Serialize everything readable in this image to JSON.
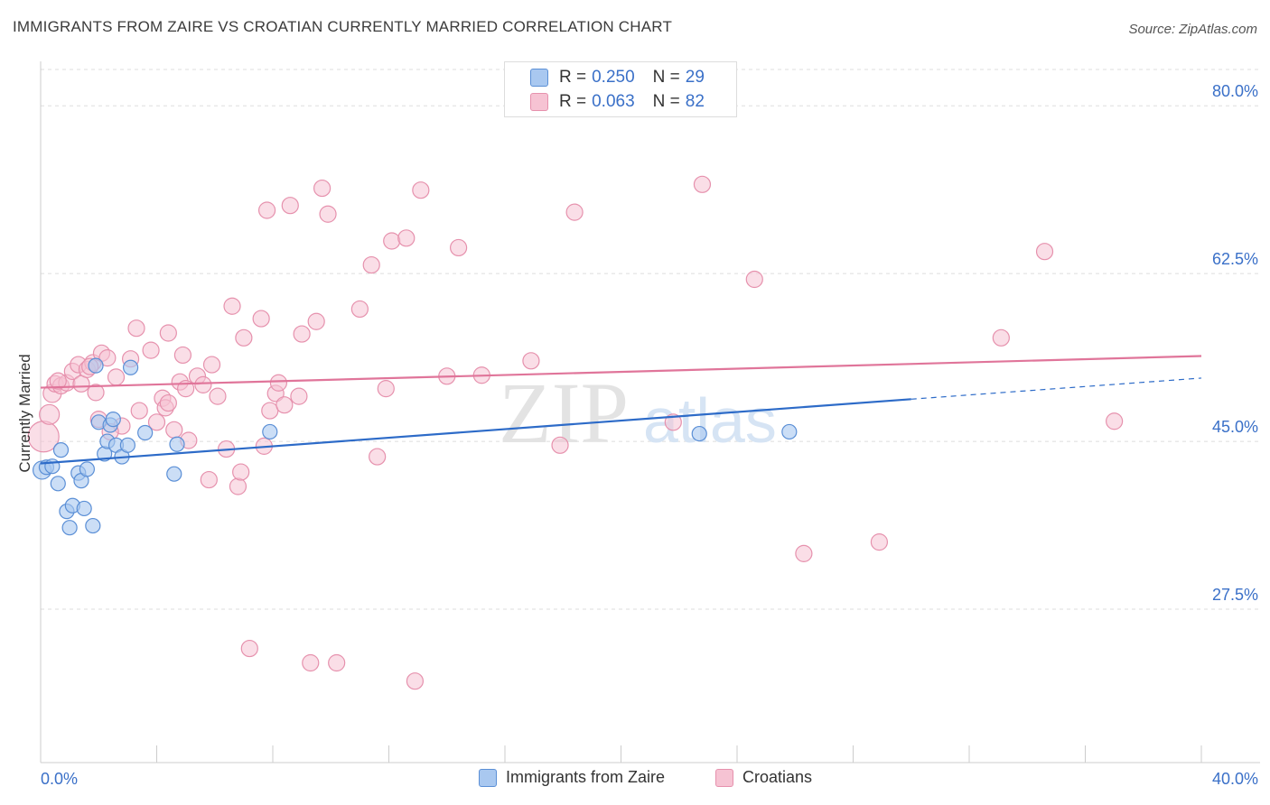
{
  "title": "IMMIGRANTS FROM ZAIRE VS CROATIAN CURRENTLY MARRIED CORRELATION CHART",
  "source": "Source: ZipAtlas.com",
  "watermark": {
    "zip": "ZIP",
    "atlas": "atlas"
  },
  "legend_top": {
    "rows": [
      {
        "series": "Immigrants from Zaire",
        "r_label": "R =",
        "r_value": "0.250",
        "n_label": "N =",
        "n_value": "29"
      },
      {
        "series": "Croatians",
        "r_label": "R =",
        "r_value": "0.063",
        "n_label": "N =",
        "n_value": "82"
      }
    ]
  },
  "legend_bottom": {
    "items": [
      {
        "label": "Immigrants from Zaire"
      },
      {
        "label": "Croatians"
      }
    ]
  },
  "colors": {
    "blue_fill": "#a9c8f0",
    "blue_stroke": "#5b8fd6",
    "blue_line": "#2d6bc8",
    "pink_fill": "#f6c3d3",
    "pink_stroke": "#e691ad",
    "pink_line": "#e0759a",
    "axis_label": "#3a70c8",
    "grid": "#dddddd"
  },
  "chart_data": {
    "type": "scatter",
    "title": "IMMIGRANTS FROM ZAIRE VS CROATIAN CURRENTLY MARRIED CORRELATION CHART",
    "xlabel": "",
    "ylabel": "Currently Married",
    "xlim": [
      0,
      40
    ],
    "ylim": [
      11.5,
      83.5
    ],
    "x_tick_labels": [
      "0.0%",
      "40.0%"
    ],
    "y_ticks": [
      27.5,
      45.0,
      62.5,
      80.0
    ],
    "y_tick_labels": [
      "27.5%",
      "45.0%",
      "62.5%",
      "80.0%"
    ],
    "grid": true,
    "legend_position": "top-center",
    "series": [
      {
        "name": "Immigrants from Zaire",
        "color": "#5b8fd6",
        "trend": {
          "x0": 0,
          "y0": 42.7,
          "x1": 30,
          "y1": 49.4,
          "dashed_to_x": 40,
          "dashed_to_y": 51.6
        },
        "points": [
          {
            "x": 0.05,
            "y": 42.0,
            "size": 10
          },
          {
            "x": 0.2,
            "y": 42.3,
            "size": 8
          },
          {
            "x": 0.4,
            "y": 42.4,
            "size": 8
          },
          {
            "x": 0.7,
            "y": 44.1,
            "size": 8
          },
          {
            "x": 0.6,
            "y": 40.6,
            "size": 8
          },
          {
            "x": 0.9,
            "y": 37.7,
            "size": 8
          },
          {
            "x": 1.0,
            "y": 36.0,
            "size": 8
          },
          {
            "x": 1.1,
            "y": 38.3,
            "size": 8
          },
          {
            "x": 1.3,
            "y": 41.7,
            "size": 8
          },
          {
            "x": 1.4,
            "y": 40.9,
            "size": 8
          },
          {
            "x": 1.5,
            "y": 38.0,
            "size": 8
          },
          {
            "x": 1.6,
            "y": 42.1,
            "size": 8
          },
          {
            "x": 1.8,
            "y": 36.2,
            "size": 8
          },
          {
            "x": 1.9,
            "y": 52.9,
            "size": 8
          },
          {
            "x": 2.0,
            "y": 47.0,
            "size": 8
          },
          {
            "x": 2.2,
            "y": 43.7,
            "size": 8
          },
          {
            "x": 2.3,
            "y": 45.0,
            "size": 8
          },
          {
            "x": 2.4,
            "y": 46.7,
            "size": 8
          },
          {
            "x": 2.5,
            "y": 47.3,
            "size": 8
          },
          {
            "x": 2.6,
            "y": 44.6,
            "size": 8
          },
          {
            "x": 2.8,
            "y": 43.4,
            "size": 8
          },
          {
            "x": 3.0,
            "y": 44.6,
            "size": 8
          },
          {
            "x": 3.1,
            "y": 52.7,
            "size": 8
          },
          {
            "x": 3.6,
            "y": 45.9,
            "size": 8
          },
          {
            "x": 4.6,
            "y": 41.6,
            "size": 8
          },
          {
            "x": 4.7,
            "y": 44.7,
            "size": 8
          },
          {
            "x": 7.9,
            "y": 46.0,
            "size": 8
          },
          {
            "x": 22.7,
            "y": 45.8,
            "size": 8
          },
          {
            "x": 25.8,
            "y": 46.0,
            "size": 8
          }
        ]
      },
      {
        "name": "Croatians",
        "color": "#e691ad",
        "trend": {
          "x0": 0,
          "y0": 50.6,
          "x1": 40,
          "y1": 53.9
        },
        "points": [
          {
            "x": 0.1,
            "y": 45.5,
            "size": 16
          },
          {
            "x": 0.3,
            "y": 47.8,
            "size": 10
          },
          {
            "x": 0.4,
            "y": 50.0,
            "size": 9
          },
          {
            "x": 0.5,
            "y": 51.0,
            "size": 8
          },
          {
            "x": 0.7,
            "y": 50.8,
            "size": 8
          },
          {
            "x": 0.9,
            "y": 51.1,
            "size": 8
          },
          {
            "x": 1.1,
            "y": 52.3,
            "size": 8
          },
          {
            "x": 1.3,
            "y": 53.0,
            "size": 8
          },
          {
            "x": 1.4,
            "y": 51.0,
            "size": 8
          },
          {
            "x": 1.6,
            "y": 52.5,
            "size": 8
          },
          {
            "x": 1.8,
            "y": 53.2,
            "size": 8
          },
          {
            "x": 1.9,
            "y": 50.1,
            "size": 8
          },
          {
            "x": 2.1,
            "y": 54.2,
            "size": 8
          },
          {
            "x": 2.3,
            "y": 53.7,
            "size": 8
          },
          {
            "x": 2.6,
            "y": 51.7,
            "size": 8
          },
          {
            "x": 2.8,
            "y": 46.6,
            "size": 8
          },
          {
            "x": 3.1,
            "y": 53.6,
            "size": 8
          },
          {
            "x": 3.3,
            "y": 56.8,
            "size": 8
          },
          {
            "x": 3.4,
            "y": 48.2,
            "size": 8
          },
          {
            "x": 3.8,
            "y": 54.5,
            "size": 8
          },
          {
            "x": 4.0,
            "y": 47.0,
            "size": 8
          },
          {
            "x": 4.2,
            "y": 49.5,
            "size": 8
          },
          {
            "x": 4.3,
            "y": 48.5,
            "size": 8
          },
          {
            "x": 4.4,
            "y": 56.3,
            "size": 8
          },
          {
            "x": 4.6,
            "y": 46.2,
            "size": 8
          },
          {
            "x": 4.8,
            "y": 51.2,
            "size": 8
          },
          {
            "x": 4.9,
            "y": 54.0,
            "size": 8
          },
          {
            "x": 5.1,
            "y": 45.1,
            "size": 8
          },
          {
            "x": 5.4,
            "y": 51.8,
            "size": 8
          },
          {
            "x": 5.6,
            "y": 50.9,
            "size": 8
          },
          {
            "x": 5.8,
            "y": 41.0,
            "size": 8
          },
          {
            "x": 5.9,
            "y": 53.0,
            "size": 8
          },
          {
            "x": 6.1,
            "y": 49.7,
            "size": 8
          },
          {
            "x": 6.4,
            "y": 44.2,
            "size": 8
          },
          {
            "x": 6.6,
            "y": 59.1,
            "size": 8
          },
          {
            "x": 6.8,
            "y": 40.3,
            "size": 8
          },
          {
            "x": 6.9,
            "y": 41.8,
            "size": 8
          },
          {
            "x": 7.0,
            "y": 55.8,
            "size": 8
          },
          {
            "x": 7.2,
            "y": 23.4,
            "size": 8
          },
          {
            "x": 7.6,
            "y": 57.8,
            "size": 8
          },
          {
            "x": 7.7,
            "y": 44.5,
            "size": 8
          },
          {
            "x": 7.8,
            "y": 69.1,
            "size": 8
          },
          {
            "x": 7.9,
            "y": 48.2,
            "size": 8
          },
          {
            "x": 8.1,
            "y": 50.0,
            "size": 8
          },
          {
            "x": 8.2,
            "y": 51.1,
            "size": 8
          },
          {
            "x": 8.4,
            "y": 48.8,
            "size": 8
          },
          {
            "x": 8.6,
            "y": 69.6,
            "size": 8
          },
          {
            "x": 8.9,
            "y": 49.7,
            "size": 8
          },
          {
            "x": 9.0,
            "y": 56.2,
            "size": 8
          },
          {
            "x": 9.3,
            "y": 21.9,
            "size": 8
          },
          {
            "x": 9.5,
            "y": 57.5,
            "size": 8
          },
          {
            "x": 9.7,
            "y": 71.4,
            "size": 8
          },
          {
            "x": 9.9,
            "y": 68.7,
            "size": 8
          },
          {
            "x": 10.2,
            "y": 21.9,
            "size": 8
          },
          {
            "x": 11.0,
            "y": 58.8,
            "size": 8
          },
          {
            "x": 11.4,
            "y": 63.4,
            "size": 8
          },
          {
            "x": 11.6,
            "y": 43.4,
            "size": 8
          },
          {
            "x": 11.9,
            "y": 50.5,
            "size": 8
          },
          {
            "x": 12.1,
            "y": 65.9,
            "size": 8
          },
          {
            "x": 12.6,
            "y": 66.2,
            "size": 8
          },
          {
            "x": 12.9,
            "y": 20.0,
            "size": 8
          },
          {
            "x": 13.1,
            "y": 71.2,
            "size": 8
          },
          {
            "x": 14.0,
            "y": 51.8,
            "size": 8
          },
          {
            "x": 14.4,
            "y": 65.2,
            "size": 8
          },
          {
            "x": 15.2,
            "y": 51.9,
            "size": 8
          },
          {
            "x": 16.9,
            "y": 53.4,
            "size": 8
          },
          {
            "x": 17.9,
            "y": 44.6,
            "size": 8
          },
          {
            "x": 18.4,
            "y": 68.9,
            "size": 8
          },
          {
            "x": 21.8,
            "y": 47.0,
            "size": 8
          },
          {
            "x": 22.8,
            "y": 71.8,
            "size": 8
          },
          {
            "x": 24.6,
            "y": 61.9,
            "size": 8
          },
          {
            "x": 26.3,
            "y": 33.3,
            "size": 8
          },
          {
            "x": 28.9,
            "y": 34.5,
            "size": 8
          },
          {
            "x": 33.1,
            "y": 55.8,
            "size": 8
          },
          {
            "x": 34.6,
            "y": 64.8,
            "size": 8
          },
          {
            "x": 37.0,
            "y": 47.1,
            "size": 8
          },
          {
            "x": 1.7,
            "y": 52.8,
            "size": 8
          },
          {
            "x": 2.0,
            "y": 47.3,
            "size": 8
          },
          {
            "x": 5.0,
            "y": 50.5,
            "size": 8
          },
          {
            "x": 4.4,
            "y": 49.0,
            "size": 8
          },
          {
            "x": 2.4,
            "y": 46.0,
            "size": 8
          },
          {
            "x": 0.6,
            "y": 51.3,
            "size": 8
          }
        ]
      }
    ]
  }
}
